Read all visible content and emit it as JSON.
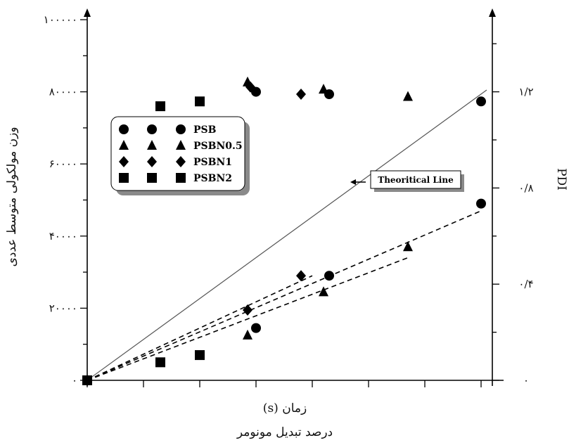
{
  "chart_data": {
    "type": "scatter",
    "xlabel_line1": "زمان (s)",
    "xlabel_line2": "درصد تبدیل مونومر",
    "ylabel_left": "وزن مولکولی متوسط عددی",
    "ylabel_right": "PDI",
    "xlim": [
      0,
      7.2
    ],
    "ylim_left": [
      0,
      100000
    ],
    "ylim_right": [
      0,
      1.5
    ],
    "left_ticks": [
      {
        "value": 0,
        "label": "۰"
      },
      {
        "value": 20000,
        "label": "۲۰۰۰۰"
      },
      {
        "value": 40000,
        "label": "۴۰۰۰۰"
      },
      {
        "value": 60000,
        "label": "۶۰۰۰۰"
      },
      {
        "value": 80000,
        "label": "۸۰۰۰۰"
      },
      {
        "value": 100000,
        "label": "۱۰۰۰۰۰"
      }
    ],
    "right_ticks": [
      {
        "value": 0,
        "label": "۰"
      },
      {
        "value": 0.4,
        "label": "۰/۴"
      },
      {
        "value": 0.8,
        "label": "۰/۸"
      },
      {
        "value": 1.2,
        "label": "۱/۲"
      }
    ],
    "legend": [
      {
        "label": "PSB",
        "marker": "circle"
      },
      {
        "label": "PSBN0.5",
        "marker": "triangle"
      },
      {
        "label": "PSBN1",
        "marker": "diamond"
      },
      {
        "label": "PSBN2",
        "marker": "square"
      }
    ],
    "theoretical_line": {
      "label": "Theoritical Line",
      "x": [
        0,
        7.1
      ],
      "y": [
        0,
        80500
      ]
    },
    "series": [
      {
        "name": "PSB",
        "marker": "circle",
        "mn": [
          [
            0,
            0
          ],
          [
            3.0,
            14500
          ],
          [
            4.3,
            29000
          ],
          [
            7.0,
            49000
          ]
        ],
        "pdi": [
          [
            3.0,
            1.2
          ],
          [
            4.3,
            1.19
          ],
          [
            7.0,
            1.16
          ]
        ]
      },
      {
        "name": "PSBN0.5",
        "marker": "triangle",
        "mn": [
          [
            0,
            0
          ],
          [
            2.85,
            12500
          ],
          [
            4.2,
            24500
          ],
          [
            5.7,
            37000
          ]
        ],
        "pdi": [
          [
            2.85,
            1.24
          ],
          [
            4.2,
            1.21
          ],
          [
            5.7,
            1.18
          ]
        ]
      },
      {
        "name": "PSBN1",
        "marker": "diamond",
        "mn": [
          [
            0,
            0
          ],
          [
            2.85,
            19500
          ],
          [
            3.8,
            29000
          ]
        ],
        "pdi": [
          [
            2.9,
            1.22
          ],
          [
            3.8,
            1.19
          ]
        ]
      },
      {
        "name": "PSBN2",
        "marker": "square",
        "mn": [
          [
            0,
            0
          ],
          [
            1.3,
            5000
          ],
          [
            2.0,
            7000
          ]
        ],
        "pdi": [
          [
            1.3,
            1.14
          ],
          [
            2.0,
            1.16
          ]
        ]
      }
    ],
    "fit_lines": [
      {
        "series": "PSB",
        "x": [
          0,
          7.0
        ],
        "y": [
          0,
          47000
        ]
      },
      {
        "series": "PSBN0.5",
        "x": [
          0,
          5.7
        ],
        "y": [
          0,
          34000
        ]
      },
      {
        "series": "PSBN1",
        "x": [
          0,
          4.0
        ],
        "y": [
          0,
          29000
        ]
      }
    ],
    "grid": false
  }
}
